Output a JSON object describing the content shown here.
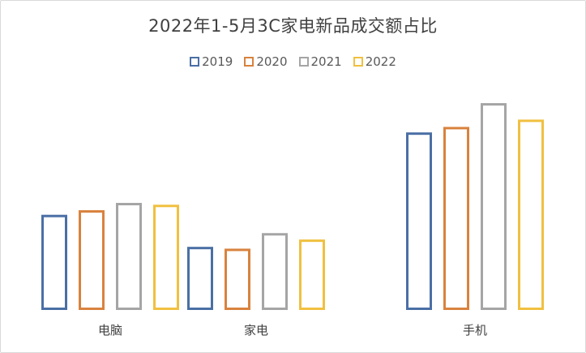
{
  "chart_data": {
    "type": "bar",
    "title": "2022年1-5月3C家电新品成交额占比",
    "categories": [
      "电脑",
      "家电",
      "手机"
    ],
    "series": [
      {
        "name": "2019",
        "color": "#4a6fa5",
        "values": [
          104,
          69,
          194
        ]
      },
      {
        "name": "2020",
        "color": "#d9823e",
        "values": [
          109,
          67,
          200
        ]
      },
      {
        "name": "2021",
        "color": "#a5a5a5",
        "values": [
          117,
          84,
          226
        ]
      },
      {
        "name": "2022",
        "color": "#f0c040",
        "values": [
          115,
          77,
          208
        ]
      }
    ],
    "xlabel": "",
    "ylabel": "",
    "ylim": [
      0,
      250
    ],
    "grid": false,
    "axis_ticks_visible": false,
    "legend_position": "top",
    "bar_style": "outlined"
  }
}
